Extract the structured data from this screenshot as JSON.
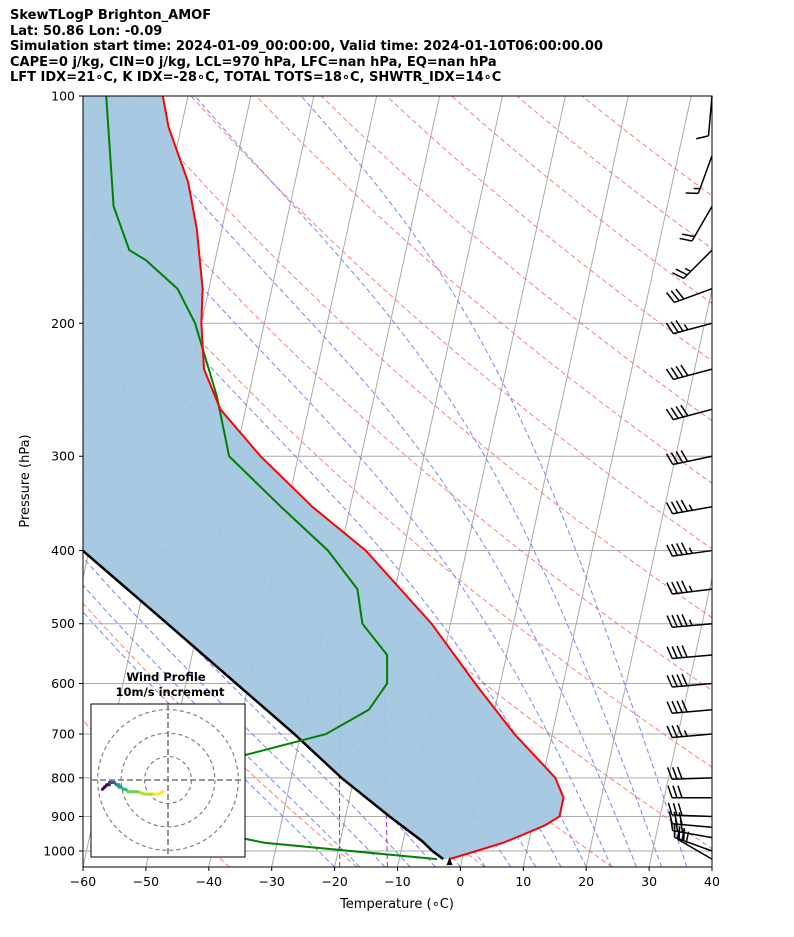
{
  "header": {
    "line1": "SkewTLogP Brighton_AMOF",
    "line2": "Lat: 50.86   Lon: -0.09",
    "line3": "Simulation start time: 2024-01-09_00:00:00, Valid time: 2024-01-10T06:00:00.00",
    "line4": "CAPE=0 j/kg, CIN=0 j/kg, LCL=970 hPa, LFC=nan hPa, EQ=nan hPa",
    "line5": "LFT IDX=21∘C, K IDX=-28∘C, TOTAL TOTS=18∘C, SHWTR_IDX=14∘C"
  },
  "colors": {
    "temperature": "#ff0000",
    "dewpoint": "#008000",
    "parcel": "#000000",
    "shade": "#a3c6e0",
    "dry_adiabats": "#ff6666",
    "moist_adiabats": "#6677ff",
    "mixing_ratio": "#9933cc",
    "isotherms": "#aaaaaa"
  },
  "chart_data": {
    "type": "line",
    "title": "",
    "xlabel": "Temperature (∘C)",
    "ylabel": "Pressure (hPa)",
    "xlim": [
      -60,
      40
    ],
    "ylim": [
      1050,
      100
    ],
    "y_scale": "log",
    "skew": true,
    "grid": true,
    "xticks": [
      -60,
      -50,
      -40,
      -30,
      -20,
      -10,
      0,
      10,
      20,
      30,
      40
    ],
    "yticks": [
      1000,
      900,
      800,
      700,
      600,
      500,
      400,
      300,
      200,
      100
    ],
    "series": [
      {
        "name": "Temperature",
        "pressure": [
          1025,
          1000,
          975,
          950,
          925,
          900,
          850,
          800,
          700,
          600,
          500,
          400,
          350,
          300,
          260,
          230,
          200,
          180,
          150,
          130,
          110,
          100
        ],
        "temperature": [
          -2,
          2,
          6,
          9,
          12,
          14,
          14,
          12,
          4,
          -4,
          -13,
          -26,
          -36,
          -46,
          -54,
          -58,
          -60,
          -61,
          -64,
          -67,
          -72,
          -74
        ]
      },
      {
        "name": "Dewpoint",
        "pressure": [
          1025,
          1000,
          975,
          950,
          925,
          900,
          850,
          800,
          770,
          700,
          650,
          600,
          550,
          500,
          450,
          400,
          350,
          300,
          250,
          200,
          180,
          165,
          160,
          140,
          100
        ],
        "dewpoint": [
          -4,
          -18,
          -32,
          -39,
          -44,
          -47,
          -49,
          -48,
          -44,
          -26,
          -20,
          -18,
          -19,
          -24,
          -26,
          -32,
          -41,
          -51,
          -55,
          -61,
          -65,
          -71,
          -74,
          -78,
          -83
        ]
      },
      {
        "name": "Parcel",
        "pressure": [
          1025,
          1000,
          970,
          900,
          800,
          700,
          600,
          500,
          400,
          300,
          200,
          150,
          100
        ],
        "temperature": [
          -3,
          -5,
          -7,
          -13,
          -22,
          -31,
          -42,
          -55,
          -71,
          -91,
          -117,
          -135,
          -160
        ]
      }
    ],
    "wind_barbs": {
      "pressure": [
        100,
        120,
        140,
        160,
        180,
        200,
        230,
        260,
        300,
        350,
        400,
        450,
        500,
        550,
        600,
        650,
        700,
        800,
        850,
        900,
        930,
        960,
        1000,
        1025
      ],
      "direction_deg": [
        185,
        200,
        210,
        225,
        250,
        255,
        255,
        255,
        258,
        260,
        262,
        263,
        265,
        265,
        265,
        265,
        265,
        268,
        270,
        272,
        275,
        280,
        290,
        300
      ],
      "speed_kt": [
        10,
        15,
        20,
        25,
        30,
        35,
        40,
        40,
        40,
        45,
        45,
        45,
        45,
        40,
        40,
        40,
        35,
        30,
        30,
        30,
        30,
        30,
        30,
        30
      ]
    },
    "hodograph": {
      "title_line1": "Wind Profile",
      "title_line2": "10m/s increment",
      "rings": [
        10,
        20,
        30
      ],
      "max_speed": 32,
      "u": [
        -2,
        -4,
        -7,
        -10,
        -13,
        -15,
        -17,
        -18,
        -19,
        -20,
        -21,
        -21,
        -22,
        -22,
        -23,
        -23,
        -24,
        -24,
        -25,
        -25,
        -26,
        -26,
        -27,
        -27,
        -28
      ],
      "v": [
        -5,
        -6,
        -6,
        -6,
        -5,
        -5,
        -5,
        -4,
        -4,
        -3,
        -3,
        -2,
        -2,
        -2,
        -1,
        -1,
        -1,
        -1,
        -1,
        -2,
        -2,
        -2,
        -3,
        -3,
        -4
      ]
    }
  }
}
